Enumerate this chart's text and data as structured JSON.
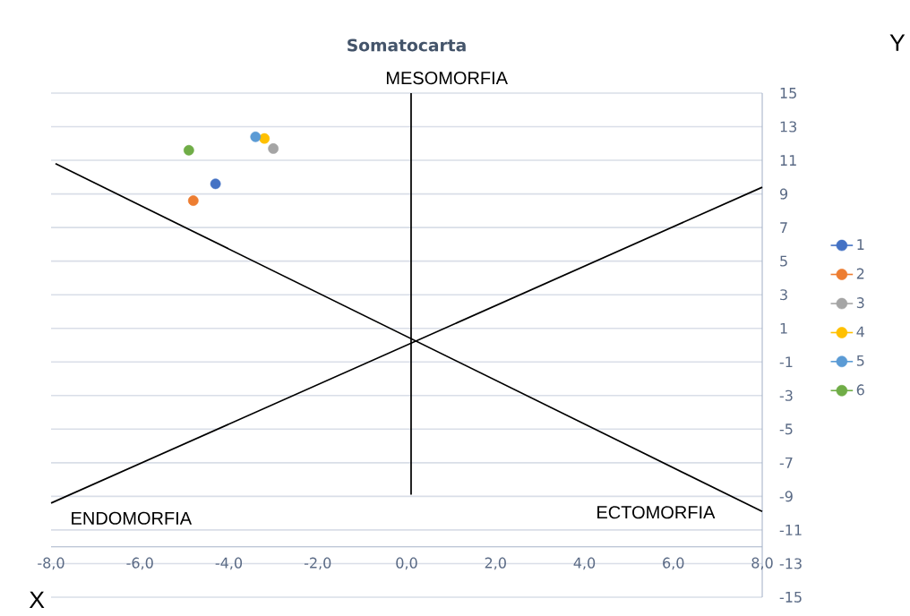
{
  "chart_data": {
    "type": "scatter",
    "title": "Somatocarta",
    "xlabel": "X",
    "ylabel": "Y",
    "xlim": [
      -8,
      8
    ],
    "ylim": [
      -15,
      15
    ],
    "xticks": [
      {
        "value": -8,
        "label": "-8,0"
      },
      {
        "value": -6,
        "label": "-6,0"
      },
      {
        "value": -4,
        "label": "-4,0"
      },
      {
        "value": -2,
        "label": "-2,0"
      },
      {
        "value": 0,
        "label": "0,0"
      },
      {
        "value": 2,
        "label": "2,0"
      },
      {
        "value": 4,
        "label": "4,0"
      },
      {
        "value": 6,
        "label": "6,0"
      },
      {
        "value": 8,
        "label": "8,0"
      }
    ],
    "yticks": [
      -15,
      -13,
      -11,
      -9,
      -7,
      -5,
      -3,
      -1,
      1,
      3,
      5,
      7,
      9,
      11,
      13,
      15
    ],
    "grid": "y",
    "legend": "right",
    "annotations": [
      "MESOMORFIA",
      "ENDOMORFIA",
      "ECTOMORFIA"
    ],
    "series": [
      {
        "type": "line",
        "color": "#000000",
        "marker": "none",
        "line_style": "solid",
        "x": [
          -8,
          8
        ],
        "values": [
          -9.4,
          9.4
        ]
      },
      {
        "type": "line",
        "color": "#000000",
        "marker": "none",
        "line_style": "solid",
        "x": [
          -7.9,
          8
        ],
        "values": [
          10.8,
          -9.9
        ]
      },
      {
        "type": "line",
        "color": "#000000",
        "marker": "none",
        "line_style": "solid",
        "x": [
          0.1,
          0.1
        ],
        "values": [
          -8.9,
          15
        ]
      },
      {
        "name": "1",
        "color": "#4472c4",
        "marker": "circle",
        "x": [
          -4.3
        ],
        "values": [
          9.6
        ]
      },
      {
        "name": "2",
        "color": "#ed7d31",
        "marker": "circle",
        "x": [
          -4.8
        ],
        "values": [
          8.6
        ]
      },
      {
        "name": "3",
        "color": "#a5a5a5",
        "marker": "circle",
        "x": [
          -3.0
        ],
        "values": [
          11.7
        ]
      },
      {
        "name": "4",
        "color": "#ffc000",
        "marker": "circle",
        "x": [
          -3.2
        ],
        "values": [
          12.3
        ]
      },
      {
        "name": "5",
        "color": "#5b9bd5",
        "marker": "circle",
        "x": [
          -3.4
        ],
        "values": [
          12.4
        ]
      },
      {
        "name": "6",
        "color": "#70ad47",
        "marker": "circle",
        "x": [
          -4.9
        ],
        "values": [
          11.6
        ]
      }
    ]
  }
}
